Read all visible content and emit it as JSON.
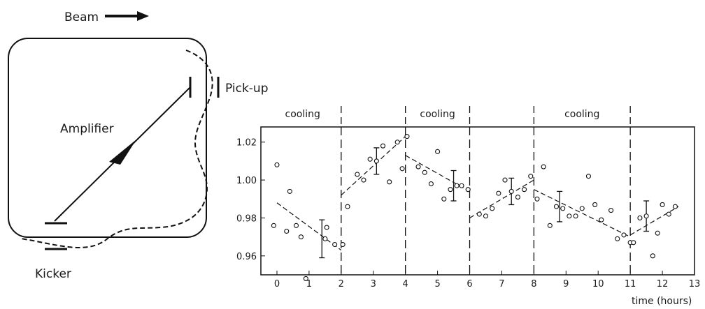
{
  "schematic": {
    "beam_label": "Beam",
    "pickup_label": "Pick-up",
    "amplifier_label": "Amplifier",
    "kicker_label": "Kicker",
    "icons": [
      "arrow-right-icon",
      "triangle-arrow-icon"
    ]
  },
  "chart_data": {
    "type": "scatter",
    "title": "",
    "xlabel": "time (hours)",
    "ylabel": "",
    "xlim": [
      -0.5,
      13
    ],
    "ylim": [
      0.95,
      1.028
    ],
    "x_ticks": [
      0,
      1,
      2,
      3,
      4,
      5,
      6,
      7,
      8,
      9,
      10,
      11,
      12,
      13
    ],
    "y_ticks": [
      0.96,
      0.98,
      1.0,
      1.02
    ],
    "y_tick_labels": [
      "0.96",
      "0.98",
      "1.00",
      "1.02"
    ],
    "grid": false,
    "period_boundaries": [
      2,
      4,
      6,
      8,
      11
    ],
    "cooling_labels": [
      {
        "text": "cooling",
        "x": 0.8
      },
      {
        "text": "cooling",
        "x": 5.0
      },
      {
        "text": "cooling",
        "x": 9.5
      }
    ],
    "points": [
      [
        -0.1,
        0.976
      ],
      [
        0,
        1.008
      ],
      [
        0.3,
        0.973
      ],
      [
        0.4,
        0.994
      ],
      [
        0.6,
        0.976
      ],
      [
        0.75,
        0.97
      ],
      [
        0.9,
        0.948
      ],
      [
        1.5,
        0.969
      ],
      [
        1.55,
        0.975
      ],
      [
        1.8,
        0.966
      ],
      [
        2.05,
        0.966
      ],
      [
        2.2,
        0.986
      ],
      [
        2.5,
        1.003
      ],
      [
        2.7,
        1.0
      ],
      [
        2.9,
        1.011
      ],
      [
        3.1,
        1.01
      ],
      [
        3.3,
        1.018
      ],
      [
        3.5,
        0.999
      ],
      [
        3.75,
        1.02
      ],
      [
        3.9,
        1.006
      ],
      [
        4.05,
        1.023
      ],
      [
        4.4,
        1.007
      ],
      [
        4.6,
        1.004
      ],
      [
        4.8,
        0.998
      ],
      [
        5.0,
        1.015
      ],
      [
        5.2,
        0.99
      ],
      [
        5.4,
        0.995
      ],
      [
        5.6,
        0.997
      ],
      [
        5.75,
        0.997
      ],
      [
        5.95,
        0.995
      ],
      [
        6.3,
        0.982
      ],
      [
        6.5,
        0.981
      ],
      [
        6.7,
        0.985
      ],
      [
        6.9,
        0.993
      ],
      [
        7.1,
        1.0
      ],
      [
        7.3,
        0.994
      ],
      [
        7.5,
        0.991
      ],
      [
        7.7,
        0.995
      ],
      [
        7.9,
        1.002
      ],
      [
        8.1,
        0.99
      ],
      [
        8.3,
        1.007
      ],
      [
        8.5,
        0.976
      ],
      [
        8.7,
        0.986
      ],
      [
        8.9,
        0.985
      ],
      [
        9.1,
        0.981
      ],
      [
        9.3,
        0.981
      ],
      [
        9.5,
        0.985
      ],
      [
        9.7,
        1.002
      ],
      [
        9.9,
        0.987
      ],
      [
        10.1,
        0.979
      ],
      [
        10.4,
        0.984
      ],
      [
        10.6,
        0.969
      ],
      [
        10.8,
        0.971
      ],
      [
        11.0,
        0.967
      ],
      [
        11.1,
        0.967
      ],
      [
        11.3,
        0.98
      ],
      [
        11.5,
        0.981
      ],
      [
        11.7,
        0.96
      ],
      [
        11.85,
        0.972
      ],
      [
        12.0,
        0.987
      ],
      [
        12.2,
        0.982
      ],
      [
        12.4,
        0.986
      ]
    ],
    "error_bars": [
      {
        "x": 1.4,
        "y": 0.969,
        "err": 0.01
      },
      {
        "x": 3.1,
        "y": 1.01,
        "err": 0.007
      },
      {
        "x": 5.5,
        "y": 0.997,
        "err": 0.008
      },
      {
        "x": 7.3,
        "y": 0.994,
        "err": 0.007
      },
      {
        "x": 8.8,
        "y": 0.986,
        "err": 0.008
      },
      {
        "x": 11.5,
        "y": 0.981,
        "err": 0.008
      }
    ],
    "trend_segments": [
      [
        [
          0,
          0.988
        ],
        [
          2,
          0.963
        ]
      ],
      [
        [
          2,
          0.992
        ],
        [
          4,
          1.023
        ]
      ],
      [
        [
          4,
          1.013
        ],
        [
          6,
          0.994
        ]
      ],
      [
        [
          6,
          0.98
        ],
        [
          8,
          1.0
        ]
      ],
      [
        [
          8,
          0.995
        ],
        [
          11,
          0.97
        ]
      ],
      [
        [
          11,
          0.971
        ],
        [
          12.5,
          0.986
        ]
      ]
    ]
  }
}
